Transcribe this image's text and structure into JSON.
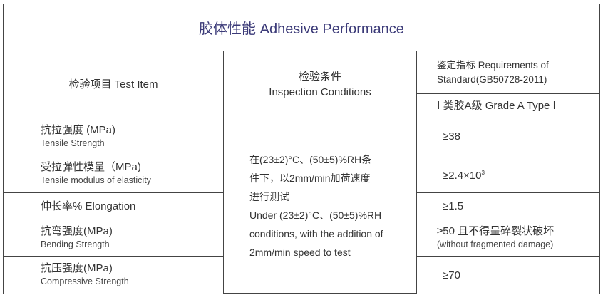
{
  "title": "胶体性能 Adhesive Performance",
  "headers": {
    "test_item": "检验项目 Test Item",
    "conditions_zh": "检验条件",
    "conditions_en": "Inspection Conditions",
    "requirements": "鉴定指标 Requirements of Standard(GB50728-2011)",
    "grade": "Ⅰ 类胶A级  Grade A Type Ⅰ"
  },
  "conditions": [
    "在(23±2)°C、(50±5)%RH条",
    "件下，以2mm/min加荷速度",
    "进行测试",
    "Under (23±2)°C、(50±5)%RH",
    "conditions, with the addition of",
    "2mm/min speed to test"
  ],
  "rows": [
    {
      "zh": "抗拉强度 (MPa)",
      "en": "Tensile Strength",
      "req": "≥38",
      "req_note": ""
    },
    {
      "zh": "受拉弹性模量（MPa)",
      "en": "Tensile modulus of elasticity",
      "req": "≥2.4×10",
      "req_sup": "3",
      "req_note": ""
    },
    {
      "zh": "伸长率% Elongation",
      "en": "",
      "req": "≥1.5",
      "req_note": ""
    },
    {
      "zh": "抗弯强度(MPa)",
      "en": "Bending Strength",
      "req": "≥50 且不得呈碎裂状破坏",
      "req_note": "(without fragmented damage)"
    },
    {
      "zh": "抗压强度(MPa)",
      "en": "Compressive Strength",
      "req": "≥70",
      "req_note": ""
    }
  ]
}
